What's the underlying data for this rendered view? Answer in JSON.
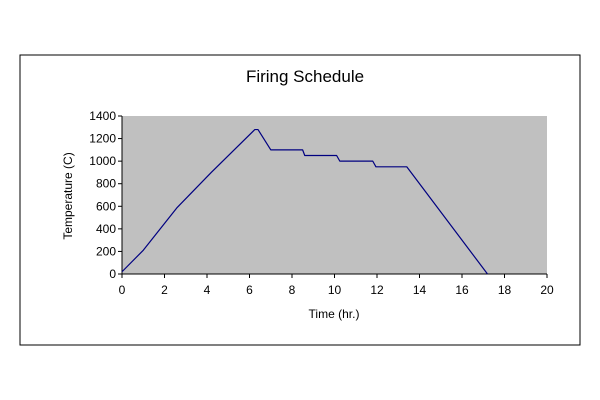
{
  "chart_data": {
    "type": "line",
    "title": "Firing Schedule",
    "xlabel": "Time (hr.)",
    "ylabel": "Temperature (C)",
    "xlim": [
      0,
      20
    ],
    "ylim": [
      0,
      1400
    ],
    "x_ticks": [
      0,
      2,
      4,
      6,
      8,
      10,
      12,
      14,
      16,
      18,
      20
    ],
    "y_ticks": [
      0,
      200,
      400,
      600,
      800,
      1000,
      1200,
      1400
    ],
    "grid": false,
    "legend": "none",
    "series": [
      {
        "color": "#000080",
        "points": [
          [
            0,
            20
          ],
          [
            1,
            210
          ],
          [
            2.6,
            590
          ],
          [
            4.2,
            900
          ],
          [
            6.25,
            1280
          ],
          [
            6.4,
            1280
          ],
          [
            7.0,
            1100
          ],
          [
            8.5,
            1100
          ],
          [
            8.6,
            1050
          ],
          [
            10.1,
            1050
          ],
          [
            10.25,
            1000
          ],
          [
            11.8,
            1000
          ],
          [
            11.95,
            950
          ],
          [
            13.4,
            950
          ],
          [
            17.2,
            0
          ]
        ]
      }
    ]
  },
  "colors": {
    "plot_background": "#c0c0c0",
    "series_line": "#000080",
    "frame": "#000000",
    "text": "#000000"
  }
}
